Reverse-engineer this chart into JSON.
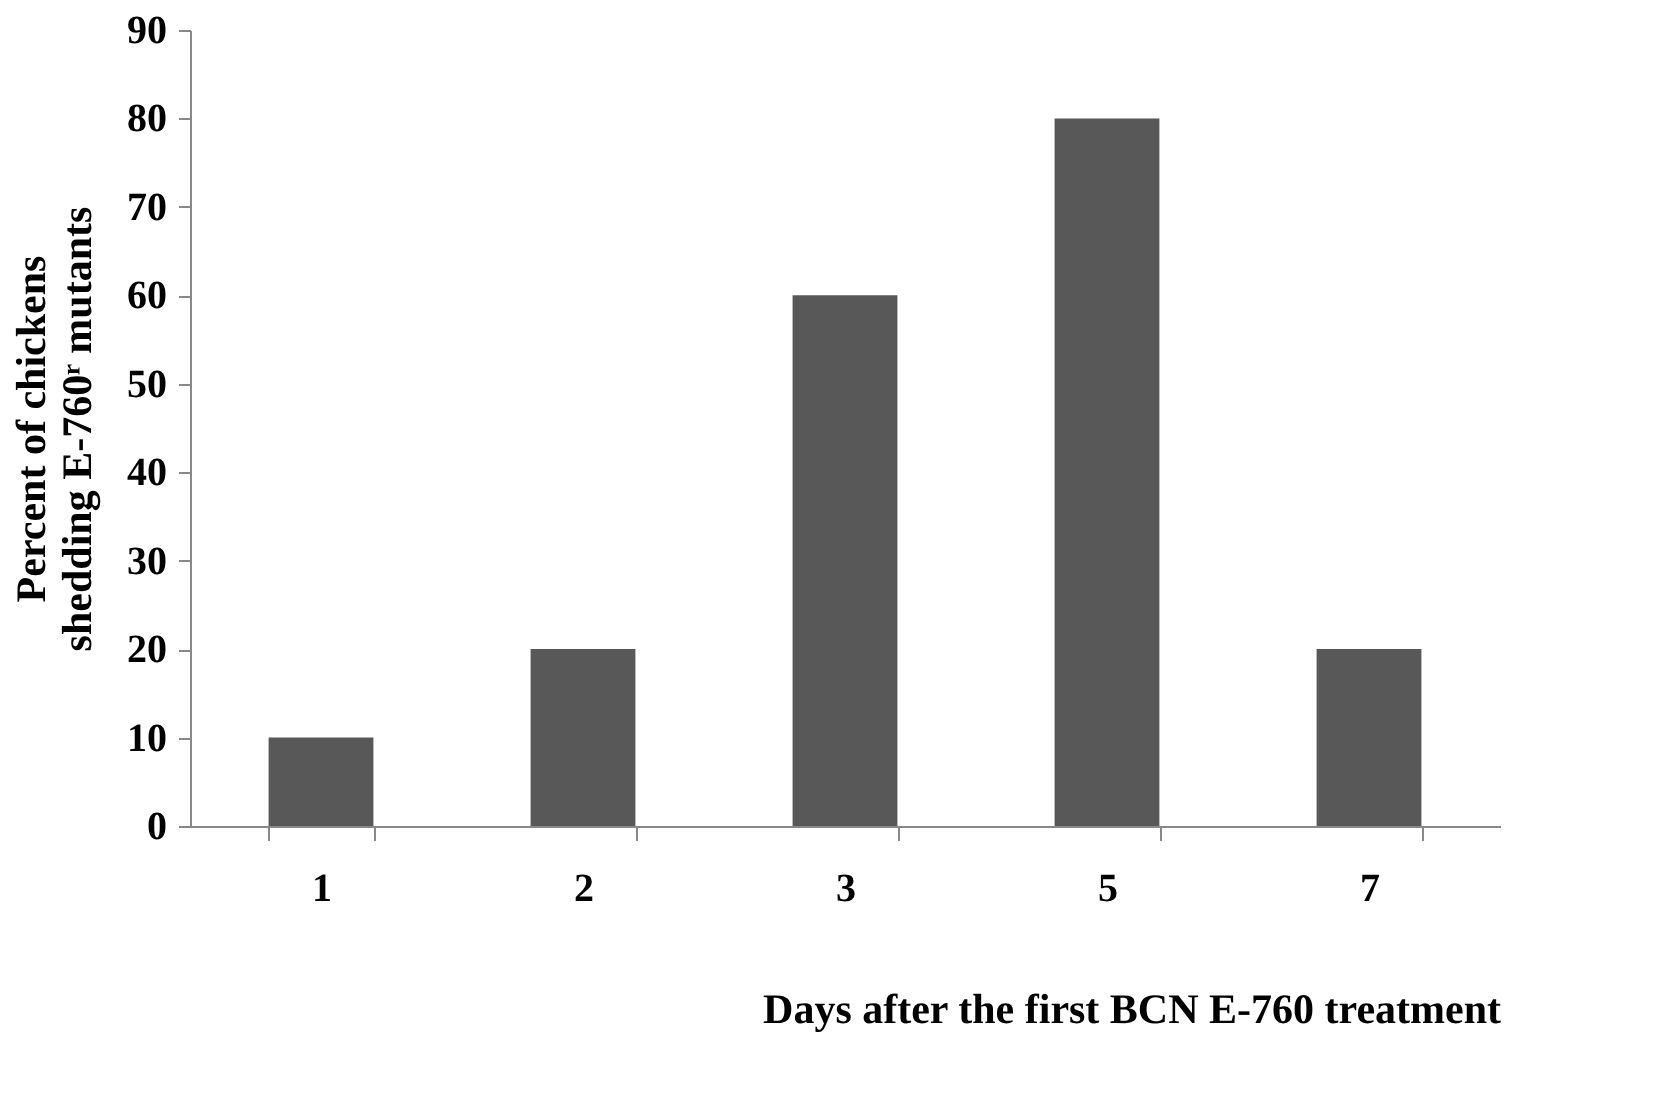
{
  "chart_data": {
    "type": "bar",
    "categories": [
      "1",
      "2",
      "3",
      "5",
      "7"
    ],
    "values": [
      10,
      20,
      60,
      80,
      20
    ],
    "color": "#585858",
    "ylim": [
      0,
      90
    ],
    "yticks": [
      0,
      10,
      20,
      30,
      40,
      50,
      60,
      70,
      80,
      90
    ],
    "grid": false,
    "xlabel": "Days after the first BCN E-760 treatment",
    "ylabel": "Percent of chickens\nshedding E-760ʳ mutants"
  }
}
